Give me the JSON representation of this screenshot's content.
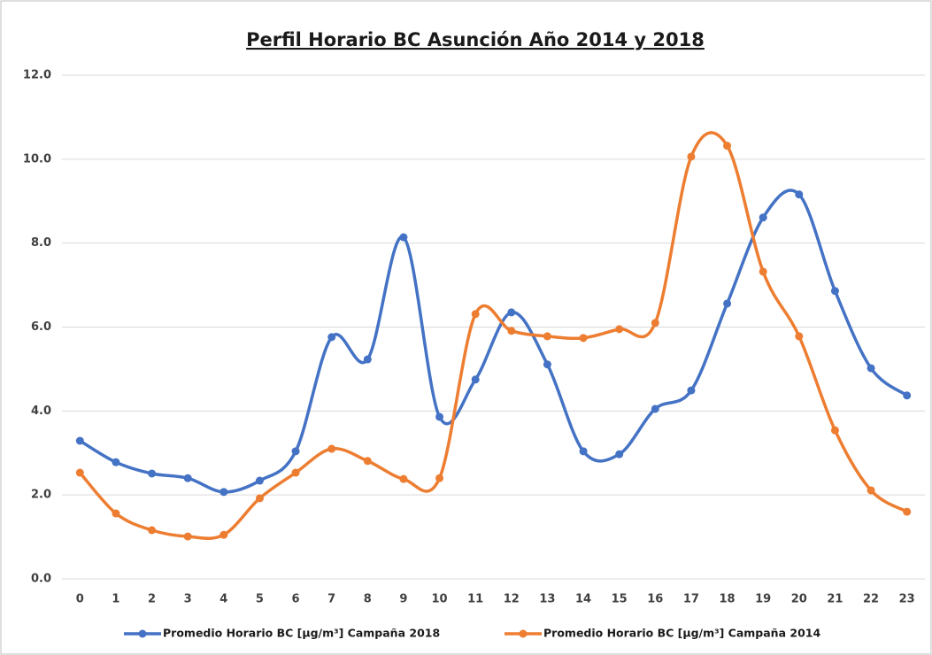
{
  "chart_data": {
    "type": "line",
    "title": "Perfil Horario BC Asunción Año 2014 y 2018",
    "categories": [
      "0",
      "1",
      "2",
      "3",
      "4",
      "5",
      "6",
      "7",
      "8",
      "9",
      "10",
      "11",
      "12",
      "13",
      "14",
      "15",
      "16",
      "17",
      "18",
      "19",
      "20",
      "21",
      "22",
      "23"
    ],
    "series": [
      {
        "name": "Promedio Horario BC [µg/m³] Campaña 2018",
        "color": "#4472c4",
        "values": [
          3.29,
          2.78,
          2.51,
          2.4,
          2.07,
          2.34,
          3.04,
          5.76,
          5.23,
          8.14,
          3.86,
          4.75,
          6.35,
          5.11,
          3.04,
          2.97,
          4.05,
          4.49,
          6.56,
          8.61,
          9.16,
          6.86,
          5.02,
          4.37
        ]
      },
      {
        "name": "Promedio Horario BC [µg/m³] Campaña 2014",
        "color": "#ed7d31",
        "values": [
          2.53,
          1.56,
          1.16,
          1.01,
          1.05,
          1.92,
          2.53,
          3.1,
          2.81,
          2.38,
          2.4,
          6.31,
          5.91,
          5.78,
          5.74,
          5.95,
          6.1,
          10.06,
          10.32,
          7.32,
          5.78,
          3.54,
          2.11,
          1.6
        ]
      }
    ],
    "ylim": [
      0,
      12
    ],
    "yticks": [
      {
        "value": 0,
        "label": "0.0"
      },
      {
        "value": 2,
        "label": "2.0"
      },
      {
        "value": 4,
        "label": "4.0"
      },
      {
        "value": 6,
        "label": "6.0"
      },
      {
        "value": 8,
        "label": "8.0"
      },
      {
        "value": 10,
        "label": "10.0"
      },
      {
        "value": 12,
        "label": "12.0"
      }
    ],
    "grid": true,
    "smooth": true,
    "legend": "bottom"
  }
}
